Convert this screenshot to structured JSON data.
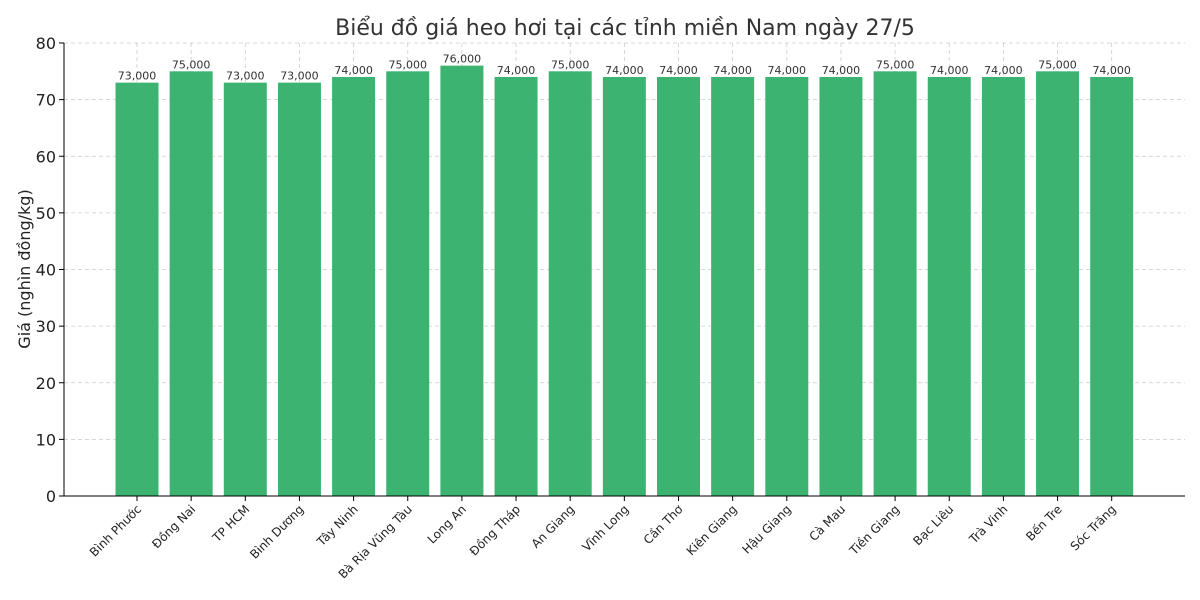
{
  "chart_data": {
    "type": "bar",
    "title": "Biểu đồ giá heo hơi tại các tỉnh miền Nam ngày 27/5",
    "xlabel": "",
    "ylabel": "Giá (nghìn đồng/kg)",
    "ylim": [
      0,
      80
    ],
    "yticks": [
      0,
      10,
      20,
      30,
      40,
      50,
      60,
      70,
      80
    ],
    "grid": true,
    "bar_color": "#3cb371",
    "categories": [
      "Bình Phước",
      "Đồng Nai",
      "TP HCM",
      "Bình Dương",
      "Tây Ninh",
      "Bà Rịa  Vũng Tàu",
      "Long An",
      "Đồng Tháp",
      "An Giang",
      "Vĩnh Long",
      "Cần Thơ",
      "Kiên Giang",
      "Hậu Giang",
      "Cà Mau",
      "Tiền Giang",
      "Bạc Liêu",
      "Trà Vinh",
      "Bến Tre",
      "Sóc Trăng"
    ],
    "values": [
      73,
      75,
      73,
      73,
      74,
      75,
      76,
      74,
      75,
      74,
      74,
      74,
      74,
      74,
      75,
      74,
      74,
      75,
      74
    ],
    "data_labels": [
      "73,000",
      "75,000",
      "73,000",
      "73,000",
      "74,000",
      "75,000",
      "76,000",
      "74,000",
      "75,000",
      "74,000",
      "74,000",
      "74,000",
      "74,000",
      "74,000",
      "75,000",
      "74,000",
      "74,000",
      "75,000",
      "74,000"
    ]
  }
}
